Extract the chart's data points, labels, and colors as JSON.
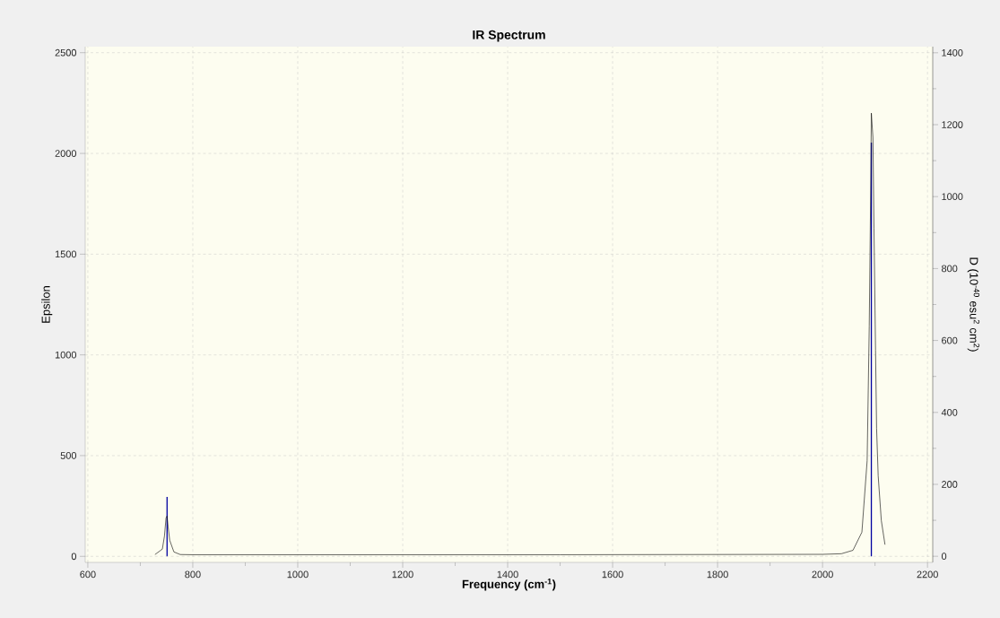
{
  "chart_data": {
    "type": "line",
    "title": "IR Spectrum",
    "xlabel": "Frequency (cm$^{-1}$)",
    "ylabel": "Epsilon",
    "y2label": "D (10$^{-40}$ esu$^{2}$ cm$^{2}$)",
    "series": [
      {
        "color": "#000000",
        "x": [
          728,
          742,
          746,
          749,
          751,
          753,
          756,
          764,
          776,
          800,
          1000,
          1500,
          2000,
          2036,
          2058,
          2075,
          2085,
          2089,
          2092,
          2093,
          2096,
          2098,
          2101,
          2103,
          2106,
          2112,
          2119
        ],
        "values": [
          9,
          36,
          100,
          190,
          200,
          147,
          80,
          22,
          9,
          8,
          8,
          8,
          10,
          13,
          30,
          120,
          475,
          1143,
          1880,
          2200,
          2080,
          1630,
          1023,
          636,
          400,
          178,
          58
        ]
      },
      {
        "type": "bar",
        "axis": "y2",
        "color": "#0000a0",
        "x": [
          751,
          2093
        ],
        "values": [
          165,
          1150
        ]
      }
    ],
    "xlim": [
      595,
      2210
    ],
    "xticks": [
      600,
      800,
      1000,
      1200,
      1400,
      1600,
      1800,
      2000,
      2200
    ],
    "ylim": [
      -30,
      2530
    ],
    "yticks": [
      0,
      500,
      1000,
      1500,
      2000,
      2500
    ],
    "y2lim": [
      -17,
      1417
    ],
    "y2ticks": [
      0,
      200,
      400,
      600,
      800,
      1000,
      1200,
      1400
    ],
    "grid": true
  }
}
